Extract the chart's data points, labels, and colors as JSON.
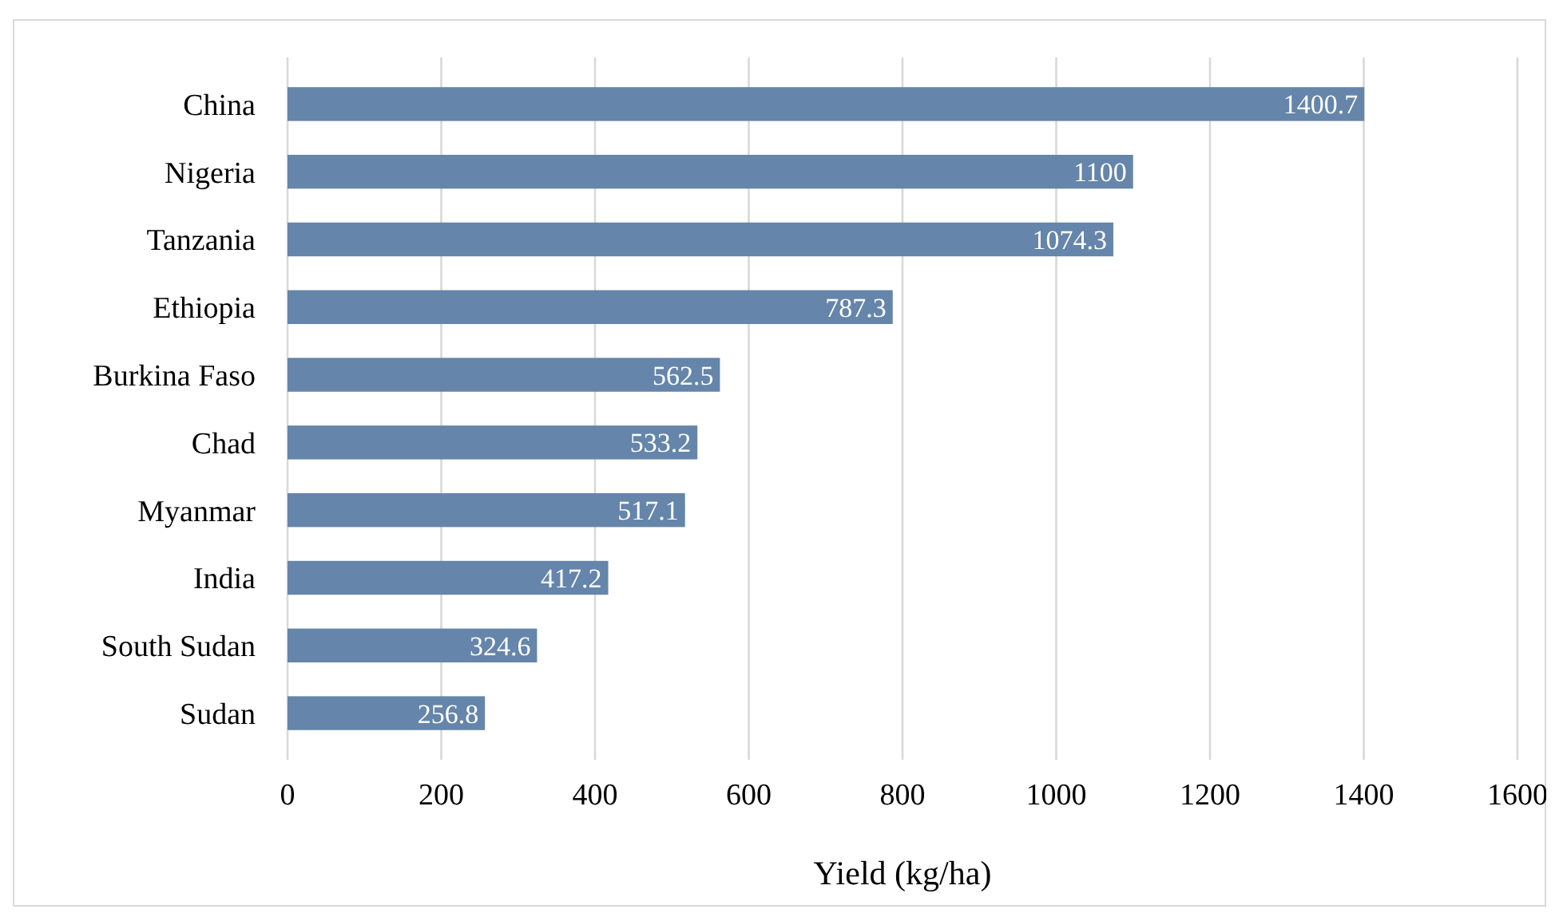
{
  "chart_data": {
    "type": "bar",
    "orientation": "horizontal",
    "xlabel": "Yield (kg/ha)",
    "categories": [
      "China",
      "Nigeria",
      "Tanzania",
      "Ethiopia",
      "Burkina Faso",
      "Chad",
      "Myanmar",
      "India",
      "South Sudan",
      "Sudan"
    ],
    "values": [
      1400.7,
      1100,
      1074.3,
      787.3,
      562.5,
      533.2,
      517.1,
      417.2,
      324.6,
      256.8
    ],
    "color": "#6585aa",
    "data_labels": true,
    "grid": "x",
    "xlim": [
      0,
      1600
    ],
    "xticks": [
      0,
      200,
      400,
      600,
      800,
      1000,
      1200,
      1400,
      1600
    ]
  }
}
